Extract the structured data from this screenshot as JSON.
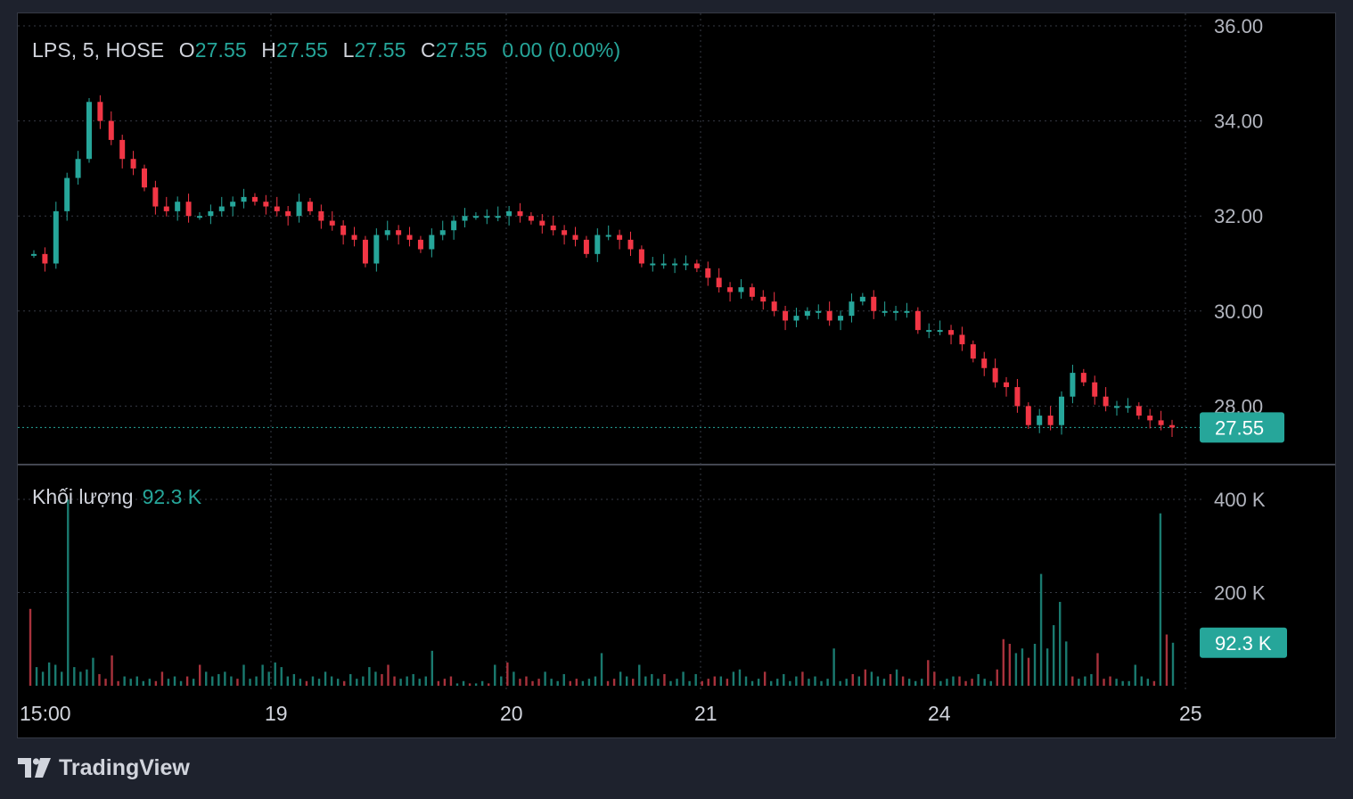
{
  "legend": {
    "symbol": "LPS, 5, HOSE",
    "open_label": "O",
    "open": "27.55",
    "high_label": "H",
    "high": "27.55",
    "low_label": "L",
    "low": "27.55",
    "close_label": "C",
    "close": "27.55",
    "change": "0.00 (0.00%)"
  },
  "volume_legend": {
    "label": "Khối lượng",
    "value": "92.3 K"
  },
  "brand": {
    "name": "TradingView"
  },
  "colors": {
    "up": "#26a69a",
    "down": "#f23645",
    "up_volume": "#1a7a6f",
    "down_volume": "#a8323c",
    "background": "#000000",
    "grid": "#363a45"
  },
  "chart_data": [
    {
      "type": "candlestick",
      "symbol": "LPS",
      "interval": "5",
      "exchange": "HOSE",
      "price_axis": {
        "ticks": [
          "36.00",
          "34.00",
          "32.00",
          "30.00",
          "28.00"
        ],
        "range": [
          26.8,
          36.0
        ]
      },
      "last_price_label": "27.55",
      "last_price": 27.55,
      "time_axis": {
        "labels": [
          "15:00",
          "19",
          "20",
          "21",
          "24",
          "25"
        ]
      },
      "price_path": [
        [
          0,
          31.2
        ],
        [
          1,
          31.0
        ],
        [
          2,
          32.1
        ],
        [
          3,
          32.8
        ],
        [
          4,
          33.2
        ],
        [
          5,
          34.4
        ],
        [
          6,
          34.0
        ],
        [
          7,
          33.6
        ],
        [
          8,
          33.2
        ],
        [
          9,
          33.0
        ],
        [
          10,
          32.6
        ],
        [
          11,
          32.2
        ],
        [
          12,
          32.1
        ],
        [
          13,
          32.3
        ],
        [
          14,
          32.0
        ],
        [
          15,
          32.0
        ],
        [
          16,
          32.1
        ],
        [
          17,
          32.2
        ],
        [
          18,
          32.3
        ],
        [
          19,
          32.4
        ],
        [
          20,
          32.3
        ],
        [
          21,
          32.2
        ],
        [
          22,
          32.1
        ],
        [
          23,
          32.0
        ],
        [
          24,
          32.3
        ],
        [
          25,
          32.1
        ],
        [
          26,
          31.9
        ],
        [
          27,
          31.8
        ],
        [
          28,
          31.6
        ],
        [
          29,
          31.5
        ],
        [
          30,
          31.0
        ],
        [
          31,
          31.6
        ],
        [
          32,
          31.7
        ],
        [
          33,
          31.6
        ],
        [
          34,
          31.5
        ],
        [
          35,
          31.3
        ],
        [
          36,
          31.6
        ],
        [
          37,
          31.7
        ],
        [
          38,
          31.9
        ],
        [
          39,
          32.0
        ],
        [
          40,
          32.0
        ],
        [
          41,
          32.0
        ],
        [
          42,
          32.0
        ],
        [
          43,
          32.1
        ],
        [
          44,
          32.0
        ],
        [
          45,
          31.9
        ],
        [
          46,
          31.8
        ],
        [
          47,
          31.7
        ],
        [
          48,
          31.6
        ],
        [
          49,
          31.5
        ],
        [
          50,
          31.2
        ],
        [
          51,
          31.6
        ],
        [
          52,
          31.6
        ],
        [
          53,
          31.5
        ],
        [
          54,
          31.3
        ],
        [
          55,
          31.0
        ],
        [
          56,
          31.0
        ],
        [
          57,
          31.0
        ],
        [
          58,
          31.0
        ],
        [
          59,
          31.0
        ],
        [
          60,
          30.9
        ],
        [
          61,
          30.7
        ],
        [
          62,
          30.5
        ],
        [
          63,
          30.4
        ],
        [
          64,
          30.5
        ],
        [
          65,
          30.3
        ],
        [
          66,
          30.2
        ],
        [
          67,
          30.0
        ],
        [
          68,
          29.8
        ],
        [
          69,
          29.9
        ],
        [
          70,
          30.0
        ],
        [
          71,
          30.0
        ],
        [
          72,
          29.8
        ],
        [
          73,
          29.9
        ],
        [
          74,
          30.2
        ],
        [
          75,
          30.3
        ],
        [
          76,
          30.0
        ],
        [
          77,
          30.0
        ],
        [
          78,
          30.0
        ],
        [
          79,
          30.0
        ],
        [
          80,
          29.6
        ],
        [
          81,
          29.6
        ],
        [
          82,
          29.6
        ],
        [
          83,
          29.5
        ],
        [
          84,
          29.3
        ],
        [
          85,
          29.0
        ],
        [
          86,
          28.8
        ],
        [
          87,
          28.5
        ],
        [
          88,
          28.4
        ],
        [
          89,
          28.0
        ],
        [
          90,
          27.6
        ],
        [
          91,
          27.8
        ],
        [
          92,
          27.6
        ],
        [
          93,
          28.2
        ],
        [
          94,
          28.7
        ],
        [
          95,
          28.5
        ],
        [
          96,
          28.2
        ],
        [
          97,
          28.0
        ],
        [
          98,
          28.0
        ],
        [
          99,
          28.0
        ],
        [
          100,
          27.8
        ],
        [
          101,
          27.7
        ],
        [
          102,
          27.6
        ],
        [
          103,
          27.55
        ]
      ],
      "day_boundaries": [
        3,
        30,
        53,
        78,
        104
      ],
      "volume_axis": {
        "ticks": [
          "400 K",
          "200 K"
        ],
        "range": [
          0,
          420
        ]
      },
      "last_volume_label": "92.3 K",
      "volume_k": [
        165,
        40,
        30,
        50,
        45,
        30,
        400,
        40,
        30,
        35,
        60,
        25,
        15,
        65,
        10,
        20,
        15,
        20,
        10,
        15,
        10,
        30,
        15,
        20,
        10,
        20,
        15,
        45,
        30,
        20,
        25,
        30,
        20,
        15,
        45,
        15,
        20,
        45,
        30,
        50,
        40,
        20,
        25,
        15,
        10,
        20,
        15,
        30,
        20,
        15,
        10,
        25,
        15,
        20,
        40,
        30,
        25,
        45,
        20,
        15,
        20,
        25,
        15,
        20,
        75,
        10,
        15,
        20,
        5,
        10,
        5,
        5,
        10,
        5,
        45,
        20,
        50,
        30,
        15,
        20,
        10,
        15,
        30,
        15,
        10,
        25,
        10,
        15,
        10,
        15,
        20,
        70,
        10,
        15,
        30,
        20,
        15,
        45,
        20,
        25,
        15,
        25,
        10,
        15,
        30,
        10,
        25,
        10,
        15,
        20,
        20,
        15,
        30,
        35,
        20,
        10,
        15,
        30,
        10,
        15,
        25,
        10,
        20,
        30,
        15,
        20,
        10,
        15,
        80,
        10,
        15,
        25,
        20,
        35,
        30,
        20,
        15,
        25,
        35,
        20,
        15,
        10,
        15,
        55,
        30,
        10,
        15,
        20,
        20,
        10,
        15,
        25,
        15,
        10,
        35,
        100,
        90,
        70,
        80,
        60,
        90,
        240,
        80,
        130,
        180,
        95,
        20,
        15,
        20,
        25,
        70,
        15,
        20,
        15,
        10,
        10,
        45,
        20,
        15,
        10,
        370,
        110,
        92.3
      ]
    }
  ]
}
